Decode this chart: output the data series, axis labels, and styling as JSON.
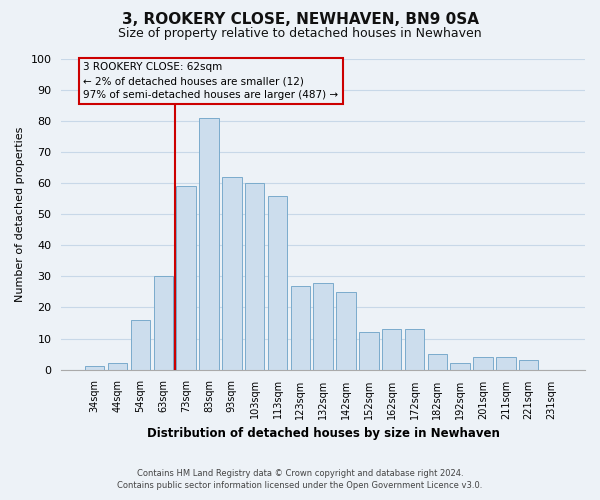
{
  "title": "3, ROOKERY CLOSE, NEWHAVEN, BN9 0SA",
  "subtitle": "Size of property relative to detached houses in Newhaven",
  "xlabel": "Distribution of detached houses by size in Newhaven",
  "ylabel": "Number of detached properties",
  "bar_labels": [
    "34sqm",
    "44sqm",
    "54sqm",
    "63sqm",
    "73sqm",
    "83sqm",
    "93sqm",
    "103sqm",
    "113sqm",
    "123sqm",
    "132sqm",
    "142sqm",
    "152sqm",
    "162sqm",
    "172sqm",
    "182sqm",
    "192sqm",
    "201sqm",
    "211sqm",
    "221sqm",
    "231sqm"
  ],
  "bar_values": [
    1,
    2,
    16,
    30,
    59,
    81,
    62,
    60,
    56,
    27,
    28,
    25,
    12,
    13,
    13,
    5,
    2,
    4,
    4,
    3,
    0
  ],
  "bar_color": "#ccdded",
  "bar_edgecolor": "#7aabcc",
  "vline_x": 3,
  "vline_color": "#cc0000",
  "annotation_title": "3 ROOKERY CLOSE: 62sqm",
  "annotation_line1": "← 2% of detached houses are smaller (12)",
  "annotation_line2": "97% of semi-detached houses are larger (487) →",
  "annotation_box_edgecolor": "#cc0000",
  "ylim": [
    0,
    100
  ],
  "yticks": [
    0,
    10,
    20,
    30,
    40,
    50,
    60,
    70,
    80,
    90,
    100
  ],
  "grid_color": "#c8d8e8",
  "footer_line1": "Contains HM Land Registry data © Crown copyright and database right 2024.",
  "footer_line2": "Contains public sector information licensed under the Open Government Licence v3.0.",
  "bg_color": "#edf2f7",
  "title_fontsize": 11,
  "subtitle_fontsize": 9
}
